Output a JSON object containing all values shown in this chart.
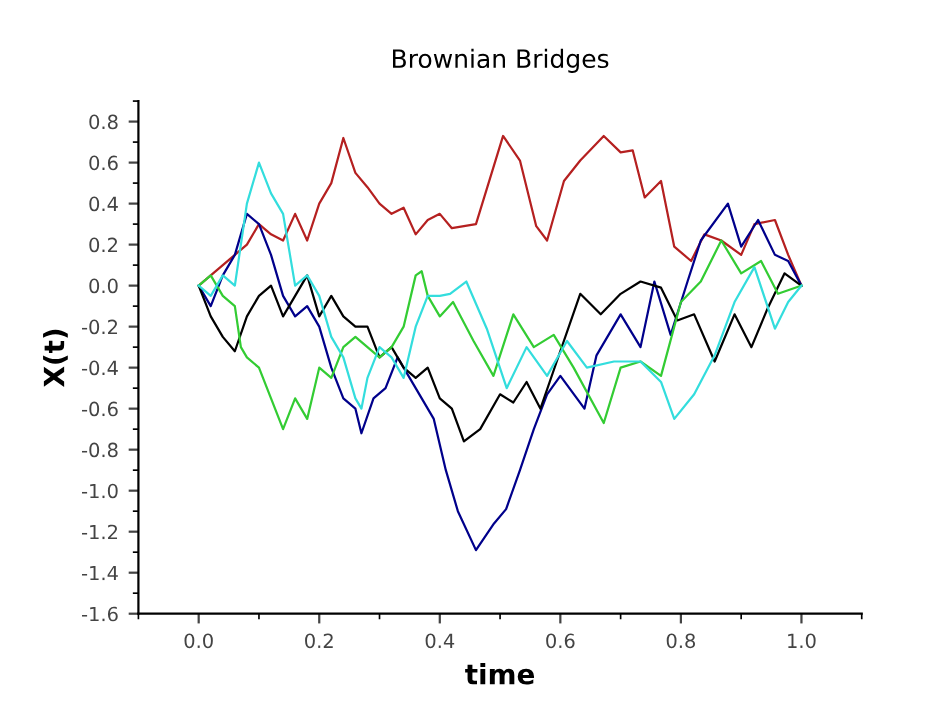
{
  "chart_data": {
    "type": "line",
    "title": "Brownian Bridges",
    "xlabel": "time",
    "ylabel": "X(t)",
    "xlim": [
      -0.1,
      1.1
    ],
    "ylim": [
      -1.6,
      0.9
    ],
    "xticks": [
      {
        "value": 0,
        "label": "0.0"
      },
      0.2,
      0.4,
      0.6,
      0.8,
      {
        "value": 1,
        "label": "1.0"
      }
    ],
    "yticks": [
      -1.6,
      -1.4,
      -1.2,
      {
        "value": -1,
        "label": "-1.0"
      },
      -0.8,
      -0.6,
      -0.4,
      -0.2,
      {
        "value": 0,
        "label": "0.0"
      },
      0.2,
      0.4,
      0.6,
      0.8
    ],
    "grid": false,
    "legend": false,
    "marker": "none",
    "line_style": "solid",
    "series": [
      {
        "color": "#b52020",
        "x": [
          0,
          0.02,
          0.04,
          0.06,
          0.08,
          0.1,
          0.12,
          0.14,
          0.16,
          0.18,
          0.2,
          0.22,
          0.24,
          0.26,
          0.28,
          0.3,
          0.32,
          0.34,
          0.36,
          0.38,
          0.4,
          0.42,
          0.44,
          0.46,
          0.505,
          0.533,
          0.56,
          0.578,
          0.606,
          0.633,
          0.672,
          0.7,
          0.72,
          0.74,
          0.767,
          0.789,
          0.817,
          0.839,
          0.867,
          0.9,
          0.922,
          0.956,
          0.978,
          1.0
        ],
        "values": [
          0,
          0.05,
          0.1,
          0.15,
          0.2,
          0.3,
          0.25,
          0.22,
          0.35,
          0.22,
          0.4,
          0.5,
          0.72,
          0.55,
          0.48,
          0.4,
          0.35,
          0.38,
          0.25,
          0.32,
          0.35,
          0.28,
          0.29,
          0.3,
          0.73,
          0.61,
          0.29,
          0.22,
          0.51,
          0.61,
          0.73,
          0.65,
          0.66,
          0.43,
          0.51,
          0.19,
          0.12,
          0.25,
          0.22,
          0.15,
          0.3,
          0.32,
          0.15,
          0
        ]
      },
      {
        "color": "#00008b",
        "x": [
          0,
          0.02,
          0.04,
          0.06,
          0.08,
          0.1,
          0.12,
          0.14,
          0.16,
          0.18,
          0.2,
          0.22,
          0.24,
          0.26,
          0.27,
          0.29,
          0.31,
          0.33,
          0.35,
          0.37,
          0.39,
          0.41,
          0.43,
          0.46,
          0.49,
          0.51,
          0.533,
          0.556,
          0.578,
          0.6,
          0.64,
          0.66,
          0.7,
          0.733,
          0.756,
          0.783,
          0.811,
          0.833,
          0.878,
          0.9,
          0.928,
          0.956,
          0.978,
          1.0
        ],
        "values": [
          0,
          -0.1,
          0.05,
          0.15,
          0.35,
          0.3,
          0.15,
          -0.05,
          -0.15,
          -0.1,
          -0.2,
          -0.4,
          -0.55,
          -0.6,
          -0.72,
          -0.55,
          -0.5,
          -0.35,
          -0.45,
          -0.55,
          -0.65,
          -0.9,
          -1.1,
          -1.29,
          -1.16,
          -1.09,
          -0.9,
          -0.7,
          -0.53,
          -0.44,
          -0.6,
          -0.34,
          -0.14,
          -0.3,
          0.02,
          -0.24,
          0.02,
          0.22,
          0.4,
          0.19,
          0.32,
          0.15,
          0.12,
          0
        ]
      },
      {
        "color": "#000000",
        "x": [
          0,
          0.02,
          0.04,
          0.06,
          0.08,
          0.1,
          0.12,
          0.14,
          0.16,
          0.18,
          0.2,
          0.22,
          0.24,
          0.26,
          0.28,
          0.3,
          0.32,
          0.34,
          0.36,
          0.38,
          0.4,
          0.42,
          0.44,
          0.467,
          0.5,
          0.522,
          0.544,
          0.567,
          0.594,
          0.633,
          0.667,
          0.7,
          0.733,
          0.767,
          0.794,
          0.822,
          0.856,
          0.889,
          0.917,
          0.944,
          0.972,
          1.0
        ],
        "values": [
          0,
          -0.15,
          -0.25,
          -0.32,
          -0.15,
          -0.05,
          0.0,
          -0.15,
          -0.05,
          0.05,
          -0.15,
          -0.05,
          -0.15,
          -0.2,
          -0.2,
          -0.35,
          -0.3,
          -0.4,
          -0.45,
          -0.4,
          -0.55,
          -0.6,
          -0.76,
          -0.7,
          -0.53,
          -0.57,
          -0.47,
          -0.6,
          -0.37,
          -0.04,
          -0.14,
          -0.04,
          0.02,
          -0.01,
          -0.17,
          -0.14,
          -0.37,
          -0.14,
          -0.3,
          -0.11,
          0.06,
          0
        ]
      },
      {
        "color": "#33cc33",
        "x": [
          0,
          0.02,
          0.04,
          0.06,
          0.07,
          0.08,
          0.1,
          0.12,
          0.14,
          0.16,
          0.18,
          0.2,
          0.22,
          0.24,
          0.26,
          0.28,
          0.3,
          0.32,
          0.34,
          0.36,
          0.37,
          0.38,
          0.4,
          0.422,
          0.456,
          0.489,
          0.522,
          0.556,
          0.589,
          0.622,
          0.672,
          0.7,
          0.733,
          0.767,
          0.8,
          0.833,
          0.867,
          0.9,
          0.933,
          0.961,
          1.0
        ],
        "values": [
          0,
          0.05,
          -0.05,
          -0.1,
          -0.3,
          -0.35,
          -0.4,
          -0.55,
          -0.7,
          -0.55,
          -0.65,
          -0.4,
          -0.45,
          -0.3,
          -0.25,
          -0.3,
          -0.35,
          -0.3,
          -0.2,
          0.05,
          0.07,
          -0.05,
          -0.15,
          -0.08,
          -0.27,
          -0.44,
          -0.14,
          -0.3,
          -0.24,
          -0.4,
          -0.67,
          -0.4,
          -0.37,
          -0.44,
          -0.08,
          0.02,
          0.22,
          0.06,
          0.12,
          -0.04,
          0
        ]
      },
      {
        "color": "#33dddd",
        "x": [
          0,
          0.02,
          0.04,
          0.06,
          0.08,
          0.1,
          0.12,
          0.14,
          0.16,
          0.18,
          0.2,
          0.22,
          0.24,
          0.26,
          0.27,
          0.28,
          0.3,
          0.32,
          0.34,
          0.36,
          0.38,
          0.4,
          0.417,
          0.444,
          0.478,
          0.511,
          0.544,
          0.578,
          0.611,
          0.644,
          0.689,
          0.733,
          0.767,
          0.789,
          0.822,
          0.856,
          0.889,
          0.922,
          0.956,
          0.978,
          1.0
        ],
        "values": [
          0,
          -0.05,
          0.05,
          0.0,
          0.4,
          0.6,
          0.45,
          0.35,
          0.0,
          0.05,
          -0.05,
          -0.25,
          -0.35,
          -0.55,
          -0.6,
          -0.45,
          -0.3,
          -0.35,
          -0.45,
          -0.2,
          -0.05,
          -0.05,
          -0.04,
          0.02,
          -0.21,
          -0.5,
          -0.3,
          -0.44,
          -0.27,
          -0.4,
          -0.37,
          -0.37,
          -0.47,
          -0.65,
          -0.53,
          -0.34,
          -0.08,
          0.09,
          -0.21,
          -0.08,
          0
        ]
      }
    ]
  }
}
